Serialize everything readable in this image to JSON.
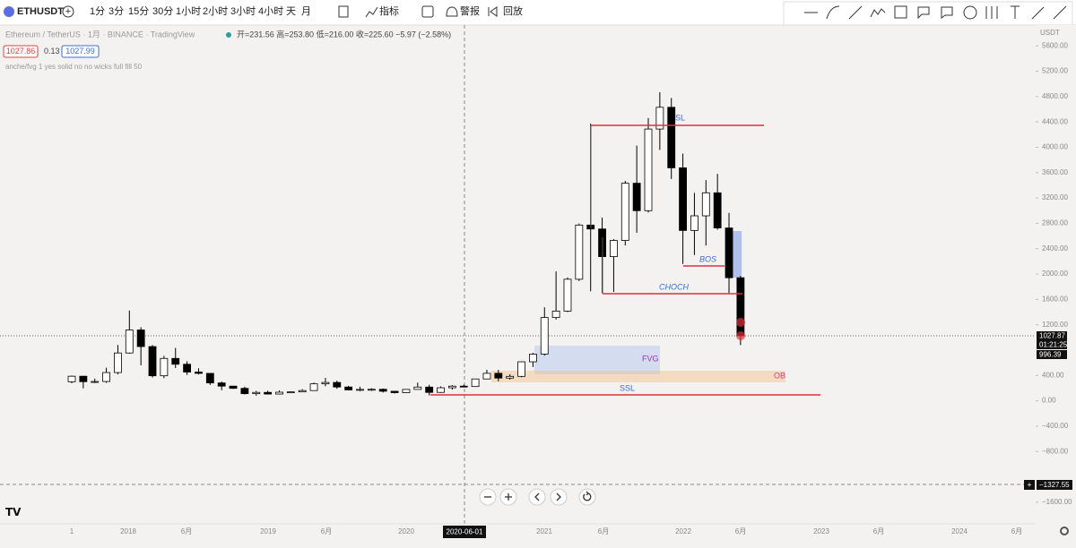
{
  "toolbar": {
    "symbol": "ETHUSDT",
    "intervals": [
      "1分",
      "3分",
      "15分",
      "30分",
      "1小时",
      "2小时",
      "3小时",
      "4小时",
      "天",
      "月"
    ],
    "indicators": "指标",
    "alerts": "警报",
    "replay": "回放"
  },
  "legend": {
    "title": "Ethereum / TetherUS · 1月 · BINANCE · TradingView",
    "ohlc": "开=231.56 高=253.80 低=216.00 收=225.60 −5.97 (−2.58%)",
    "bid": "1027.86",
    "spread": "0.13",
    "ask": "1027.99",
    "indicator": "anche/fvg 1 yes solid no no wicks full fill 50"
  },
  "price_axis": {
    "unit": "USDT",
    "last_price": "1027.87",
    "countdown": "01:21:25",
    "low_price": "996.39",
    "crosshair_price": "−1327.55"
  },
  "time_axis": {
    "labels": [
      "1",
      "2018",
      "6月",
      "2019",
      "6月",
      "2020",
      "2021",
      "6月",
      "2022",
      "6月",
      "2023",
      "6月",
      "2024",
      "6月"
    ],
    "crosshair_date": "2020-06-01"
  },
  "annotations": {
    "sl": "SL",
    "bos": "BOS",
    "choch": "CHOCH",
    "fvg": "FVG",
    "ob": "OB",
    "ssl": "SSL"
  },
  "chart_data": {
    "type": "candlestick",
    "up_color": "#ffffff",
    "down_color": "#000000",
    "open": [
      301,
      388,
      302,
      305,
      446,
      755,
      1118,
      856,
      395,
      669,
      577,
      454,
      433,
      282,
      232,
      197,
      113,
      133,
      107,
      136,
      141,
      162,
      268,
      290,
      218,
      172,
      180,
      182,
      151,
      129,
      180,
      217,
      133,
      206,
      231.56,
      225.6,
      345,
      434,
      359,
      386,
      616,
      737,
      1314,
      1416,
      1918,
      2773,
      2711,
      2275,
      2530,
      3433,
      3000,
      4288,
      4631,
      3676,
      2688,
      2919,
      3282,
      2727,
      1942
    ],
    "high": [
      400,
      394,
      351,
      523,
      881,
      1424,
      1161,
      880,
      710,
      835,
      625,
      513,
      434,
      305,
      237,
      223,
      157,
      160,
      165,
      147,
      184,
      287,
      362,
      318,
      236,
      223,
      200,
      194,
      154,
      185,
      288,
      253,
      228,
      248,
      253.8,
      347,
      490,
      488,
      419,
      623,
      758,
      1475,
      2042,
      1947,
      2797,
      4372,
      2891,
      2551,
      3470,
      4027,
      4460,
      4868,
      4778,
      3900,
      3280,
      3482,
      3580,
      2965,
      1970
    ],
    "low": [
      278,
      197,
      280,
      284,
      416,
      742,
      560,
      367,
      358,
      517,
      408,
      416,
      252,
      167,
      187,
      101,
      82,
      100,
      101,
      128,
      138,
      157,
      230,
      190,
      164,
      152,
      156,
      131,
      116,
      127,
      178,
      86,
      126,
      176,
      216,
      220,
      340,
      308,
      334,
      372,
      533,
      714,
      1282,
      1400,
      1890,
      1728,
      1700,
      1718,
      2451,
      2652,
      2970,
      3958,
      3500,
      2159,
      2300,
      2450,
      2700,
      1700,
      880
    ],
    "close": [
      388,
      302,
      305,
      446,
      755,
      1118,
      856,
      395,
      669,
      577,
      454,
      433,
      282,
      232,
      197,
      113,
      133,
      107,
      136,
      141,
      162,
      268,
      290,
      218,
      172,
      180,
      182,
      151,
      129,
      180,
      217,
      133,
      206,
      231.56,
      225.6,
      345,
      434,
      359,
      386,
      616,
      737,
      1314,
      1416,
      1918,
      2773,
      2711,
      2275,
      2530,
      3433,
      3000,
      4288,
      4631,
      3676,
      2688,
      2919,
      3282,
      2727,
      1942,
      1027.87
    ],
    "ylim": [
      -1870,
      5900
    ],
    "yticks": [
      {
        "value": 5600,
        "label": "5600.00"
      },
      {
        "value": 5200,
        "label": "5200.00"
      },
      {
        "value": 4800,
        "label": "4800.00"
      },
      {
        "value": 4400,
        "label": "4400.00"
      },
      {
        "value": 4000,
        "label": "4000.00"
      },
      {
        "value": 3600,
        "label": "3600.00"
      },
      {
        "value": 3200,
        "label": "3200.00"
      },
      {
        "value": 2800,
        "label": "2800.00"
      },
      {
        "value": 2400,
        "label": "2400.00"
      },
      {
        "value": 2000,
        "label": "2000.00"
      },
      {
        "value": 1600,
        "label": "1600.00"
      },
      {
        "value": 1200,
        "label": "1200.00"
      },
      {
        "value": 400,
        "label": "400.00"
      },
      {
        "value": 0,
        "label": "0.00"
      },
      {
        "value": -400,
        "label": "−400.00"
      },
      {
        "value": -800,
        "label": "−800.00"
      },
      {
        "value": -1600,
        "label": "−1600.00"
      }
    ]
  }
}
